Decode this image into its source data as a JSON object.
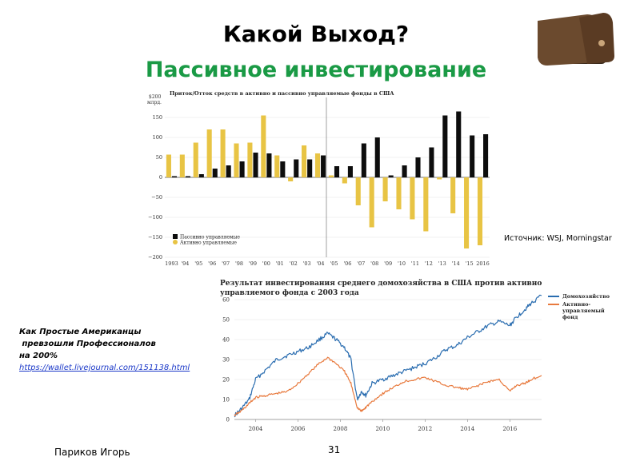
{
  "slide": {
    "title": "Какой Выход?",
    "subtitle": "Пассивное инвестирование",
    "source": "Источник: WSJ, Morningstar",
    "note_line1": "Как Простые Американцы",
    "note_line2": " превзошли Профессионалов",
    "note_line3": "на 200%",
    "note_link": "https://wallet.livejournal.com/151138.html",
    "author": "Париков Игорь",
    "page_number": "31"
  },
  "colors": {
    "passive": "#0d0d0d",
    "active": "#e8c444",
    "household": "#2a6db0",
    "fund": "#e87a3e",
    "subtitle": "#1a9a45"
  },
  "icons": {
    "wallet": "wallet-icon"
  },
  "chart_data": [
    {
      "type": "bar",
      "title": "Приток/Отток средств в активно и пассивно управляемые фонды в США",
      "ylabel_top": "$200",
      "ylabel_unit": "млрд.",
      "ylim": [
        -200,
        200
      ],
      "yticks": [
        150,
        100,
        50,
        0,
        -50,
        -100,
        -150,
        -200
      ],
      "categories": [
        "1993",
        "'94",
        "'95",
        "'96",
        "'97",
        "'98",
        "'99",
        "'00",
        "'01",
        "'02",
        "'03",
        "'04",
        "'05",
        "'06",
        "'07",
        "'08",
        "'09",
        "'10",
        "'11",
        "'12",
        "'13",
        "'14",
        "'15",
        "2016"
      ],
      "series": [
        {
          "name": "Пассивно управляемые",
          "values": [
            3,
            3,
            8,
            22,
            30,
            40,
            62,
            60,
            40,
            45,
            45,
            55,
            28,
            28,
            85,
            100,
            5,
            30,
            50,
            75,
            155,
            165,
            105,
            108
          ]
        },
        {
          "name": "Активно управляемые",
          "values": [
            57,
            57,
            87,
            120,
            120,
            85,
            87,
            155,
            55,
            -10,
            80,
            60,
            5,
            -15,
            -70,
            -125,
            -60,
            -80,
            -105,
            -135,
            -5,
            -90,
            -178,
            -170
          ]
        }
      ],
      "legend": "bottom-left",
      "grid": true
    },
    {
      "type": "line",
      "title_line1": "Результат инвестирования среднего домохозяйства в США против активно",
      "title_line2": "управляемого фонда с 2003 года",
      "ylim": [
        0,
        60
      ],
      "yticks": [
        0,
        10,
        20,
        30,
        40,
        50,
        60
      ],
      "xticks": [
        "2004",
        "2006",
        "2008",
        "2010",
        "2012",
        "2014",
        "2016"
      ],
      "xlim": [
        2003.0,
        2017.5
      ],
      "series": [
        {
          "name": "Домохозяйство",
          "x": [
            2003.0,
            2003.3,
            2003.7,
            2004.0,
            2004.5,
            2005.0,
            2005.5,
            2006.0,
            2006.5,
            2007.0,
            2007.4,
            2007.8,
            2008.2,
            2008.5,
            2008.8,
            2009.0,
            2009.2,
            2009.5,
            2010.0,
            2010.5,
            2011.0,
            2011.5,
            2012.0,
            2012.5,
            2013.0,
            2013.5,
            2014.0,
            2014.5,
            2015.0,
            2015.5,
            2016.0,
            2016.3,
            2016.7,
            2017.0,
            2017.5
          ],
          "values": [
            2,
            5,
            10,
            20,
            25,
            30,
            32,
            34,
            36,
            40,
            43,
            40,
            36,
            30,
            10,
            14,
            12,
            18,
            20,
            22,
            24,
            26,
            28,
            31,
            35,
            37,
            41,
            44,
            47,
            49,
            47,
            51,
            55,
            58,
            62
          ]
        },
        {
          "name": "Активно-управляемый фонд",
          "x": [
            2003.0,
            2003.3,
            2003.7,
            2004.0,
            2004.5,
            2005.0,
            2005.5,
            2006.0,
            2006.5,
            2007.0,
            2007.4,
            2007.8,
            2008.2,
            2008.5,
            2008.8,
            2009.0,
            2009.2,
            2009.5,
            2010.0,
            2010.5,
            2011.0,
            2011.5,
            2012.0,
            2012.5,
            2013.0,
            2013.5,
            2014.0,
            2014.5,
            2015.0,
            2015.5,
            2016.0,
            2016.3,
            2016.7,
            2017.0,
            2017.5
          ],
          "values": [
            2,
            4,
            8,
            11,
            12,
            13,
            14,
            18,
            23,
            28,
            31,
            28,
            24,
            18,
            6,
            4,
            6,
            9,
            13,
            16,
            19,
            20,
            21,
            19,
            17,
            16,
            15,
            17,
            19,
            20,
            14,
            17,
            18,
            20,
            22
          ]
        }
      ],
      "legend": "right",
      "grid": true
    }
  ]
}
